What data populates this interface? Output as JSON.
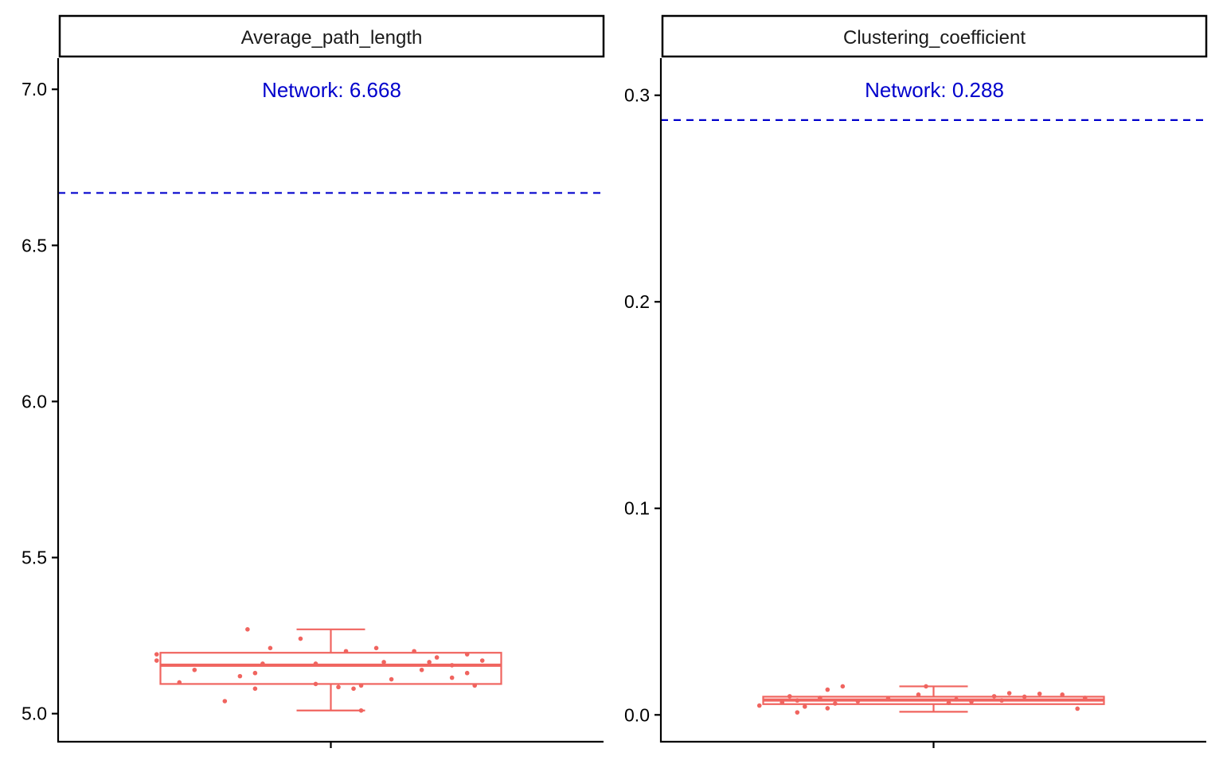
{
  "colors": {
    "series": "#F0645F",
    "reference_line": "#0000CC",
    "annotation": "#0000CC",
    "axis": "#000000"
  },
  "chart_data": [
    {
      "type": "box",
      "facet": "Average_path_length",
      "reference_label": "Network: 6.668",
      "reference_value": 6.668,
      "ylim": [
        4.91,
        7.1
      ],
      "yticks": [
        5.0,
        5.5,
        6.0,
        6.5,
        7.0
      ],
      "ytick_labels": [
        "5.0",
        "5.5",
        "6.0",
        "6.5",
        "7.0"
      ],
      "box": {
        "whisker_low": 5.01,
        "q1": 5.095,
        "median": 5.155,
        "q3": 5.195,
        "whisker_high": 5.27
      },
      "points": [
        {
          "x": -0.11,
          "y": 5.27
        },
        {
          "x": -0.04,
          "y": 5.24
        },
        {
          "x": -0.08,
          "y": 5.21
        },
        {
          "x": 0.02,
          "y": 5.2
        },
        {
          "x": 0.06,
          "y": 5.21
        },
        {
          "x": 0.11,
          "y": 5.2
        },
        {
          "x": -0.23,
          "y": 5.19
        },
        {
          "x": 0.18,
          "y": 5.19
        },
        {
          "x": 0.14,
          "y": 5.18
        },
        {
          "x": -0.23,
          "y": 5.17
        },
        {
          "x": 0.13,
          "y": 5.165
        },
        {
          "x": 0.2,
          "y": 5.17
        },
        {
          "x": -0.09,
          "y": 5.16
        },
        {
          "x": -0.02,
          "y": 5.16
        },
        {
          "x": 0.07,
          "y": 5.165
        },
        {
          "x": 0.16,
          "y": 5.155
        },
        {
          "x": -0.18,
          "y": 5.14
        },
        {
          "x": -0.1,
          "y": 5.13
        },
        {
          "x": 0.12,
          "y": 5.14
        },
        {
          "x": 0.18,
          "y": 5.13
        },
        {
          "x": -0.12,
          "y": 5.12
        },
        {
          "x": 0.16,
          "y": 5.115
        },
        {
          "x": -0.2,
          "y": 5.1
        },
        {
          "x": 0.08,
          "y": 5.11
        },
        {
          "x": -0.02,
          "y": 5.095
        },
        {
          "x": 0.04,
          "y": 5.09
        },
        {
          "x": 0.01,
          "y": 5.085
        },
        {
          "x": 0.19,
          "y": 5.09
        },
        {
          "x": 0.03,
          "y": 5.08
        },
        {
          "x": -0.1,
          "y": 5.08
        },
        {
          "x": -0.14,
          "y": 5.04
        },
        {
          "x": 0.04,
          "y": 5.01
        }
      ]
    },
    {
      "type": "box",
      "facet": "Clustering_coefficient",
      "reference_label": "Network: 0.288",
      "reference_value": 0.288,
      "ylim": [
        -0.013,
        0.318
      ],
      "yticks": [
        0.0,
        0.1,
        0.2,
        0.3
      ],
      "ytick_labels": [
        "0.0",
        "0.1",
        "0.2",
        "0.3"
      ],
      "box": {
        "whisker_low": 0.0015,
        "q1": 0.0052,
        "median": 0.0072,
        "q3": 0.0088,
        "whisker_high": 0.0138
      },
      "points": [
        {
          "x": -0.12,
          "y": 0.0138
        },
        {
          "x": -0.01,
          "y": 0.0138
        },
        {
          "x": -0.14,
          "y": 0.0122
        },
        {
          "x": 0.1,
          "y": 0.0105
        },
        {
          "x": 0.14,
          "y": 0.0102
        },
        {
          "x": -0.02,
          "y": 0.0098
        },
        {
          "x": 0.17,
          "y": 0.0098
        },
        {
          "x": -0.19,
          "y": 0.009
        },
        {
          "x": 0.08,
          "y": 0.009
        },
        {
          "x": 0.12,
          "y": 0.0088
        },
        {
          "x": -0.15,
          "y": 0.0082
        },
        {
          "x": 0.2,
          "y": 0.0082
        },
        {
          "x": -0.06,
          "y": 0.0078
        },
        {
          "x": 0.03,
          "y": 0.0075
        },
        {
          "x": -0.18,
          "y": 0.007
        },
        {
          "x": 0.09,
          "y": 0.007
        },
        {
          "x": -0.1,
          "y": 0.0066
        },
        {
          "x": 0.05,
          "y": 0.0064
        },
        {
          "x": -0.2,
          "y": 0.006
        },
        {
          "x": 0.02,
          "y": 0.0058
        },
        {
          "x": -0.13,
          "y": 0.0055
        },
        {
          "x": -0.23,
          "y": 0.0045
        },
        {
          "x": -0.17,
          "y": 0.004
        },
        {
          "x": -0.14,
          "y": 0.0032
        },
        {
          "x": 0.19,
          "y": 0.003
        },
        {
          "x": -0.18,
          "y": 0.0012
        }
      ]
    }
  ]
}
